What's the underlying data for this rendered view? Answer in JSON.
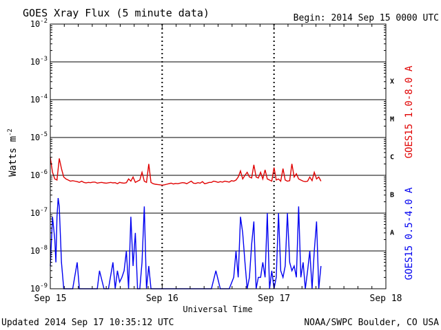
{
  "chart_data": {
    "type": "line",
    "title": "GOES Xray Flux (5 minute data)",
    "begin_label": "Begin:  2014 Sep 15 0000 UTC",
    "xlabel": "Universal Time",
    "ylabel": "Watts m",
    "ylabel_sup": "-2",
    "footer_left": "Updated 2014 Sep 17 10:35:12 UTC",
    "footer_right": "NOAA/SWPC Boulder, CO USA",
    "xlim_days": [
      0,
      3
    ],
    "x_ticks": [
      {
        "day": 0,
        "label": "Sep 15"
      },
      {
        "day": 1,
        "label": "Sep 16"
      },
      {
        "day": 2,
        "label": "Sep 17"
      },
      {
        "day": 3,
        "label": "Sep 18"
      }
    ],
    "y_scale": "log",
    "ylim_exp": [
      -9,
      -2
    ],
    "y_ticks": [
      {
        "exp": -2,
        "base": "10",
        "sup": "-2"
      },
      {
        "exp": -3,
        "base": "10",
        "sup": "-3"
      },
      {
        "exp": -4,
        "base": "10",
        "sup": "-4"
      },
      {
        "exp": -5,
        "base": "10",
        "sup": "-5"
      },
      {
        "exp": -6,
        "base": "10",
        "sup": "-6"
      },
      {
        "exp": -7,
        "base": "10",
        "sup": "-7"
      },
      {
        "exp": -8,
        "base": "10",
        "sup": "-8"
      },
      {
        "exp": -9,
        "base": "10",
        "sup": "-9"
      }
    ],
    "flare_classes": [
      {
        "label": "X",
        "exp": -3.5
      },
      {
        "label": "M",
        "exp": -4.5
      },
      {
        "label": "C",
        "exp": -5.5
      },
      {
        "label": "B",
        "exp": -6.5
      },
      {
        "label": "A",
        "exp": -7.5
      }
    ],
    "grid": true,
    "series": [
      {
        "name": "GOES15 1.0-8.0 A",
        "color": "#e00000",
        "x": [
          0.0,
          0.02,
          0.04,
          0.06,
          0.08,
          0.1,
          0.12,
          0.14,
          0.16,
          0.18,
          0.2,
          0.22,
          0.24,
          0.26,
          0.28,
          0.3,
          0.32,
          0.34,
          0.36,
          0.38,
          0.4,
          0.42,
          0.44,
          0.46,
          0.48,
          0.5,
          0.54,
          0.56,
          0.58,
          0.6,
          0.62,
          0.64,
          0.66,
          0.68,
          0.7,
          0.72,
          0.74,
          0.76,
          0.78,
          0.8,
          0.82,
          0.84,
          0.86,
          0.88,
          0.9,
          0.92,
          0.94,
          0.96,
          0.98,
          1.0,
          1.02,
          1.04,
          1.06,
          1.08,
          1.1,
          1.12,
          1.14,
          1.16,
          1.18,
          1.2,
          1.22,
          1.24,
          1.26,
          1.28,
          1.3,
          1.32,
          1.34,
          1.36,
          1.38,
          1.4,
          1.42,
          1.44,
          1.46,
          1.48,
          1.5,
          1.52,
          1.54,
          1.56,
          1.58,
          1.6,
          1.62,
          1.64,
          1.66,
          1.68,
          1.7,
          1.72,
          1.74,
          1.76,
          1.78,
          1.8,
          1.82,
          1.84,
          1.86,
          1.88,
          1.9,
          1.92,
          1.94,
          1.96,
          1.98,
          2.0,
          2.02,
          2.04,
          2.06,
          2.08,
          2.1,
          2.12,
          2.14,
          2.16,
          2.18,
          2.2,
          2.22,
          2.24,
          2.26,
          2.28,
          2.3,
          2.32,
          2.34,
          2.36,
          2.38,
          2.4,
          2.42
        ],
        "y": [
          3e-06,
          1.2e-06,
          8e-07,
          7.5e-07,
          2.8e-06,
          1.5e-06,
          9e-07,
          8e-07,
          7.5e-07,
          7e-07,
          7.2e-07,
          7e-07,
          6.8e-07,
          6.5e-07,
          7e-07,
          6.5e-07,
          6.3e-07,
          6.5e-07,
          6.4e-07,
          6.6e-07,
          6.6e-07,
          6.2e-07,
          6.4e-07,
          6.5e-07,
          6.3e-07,
          6.2e-07,
          6.5e-07,
          6.3e-07,
          6.4e-07,
          6e-07,
          6.5e-07,
          6.3e-07,
          6.2e-07,
          6.4e-07,
          8e-07,
          7e-07,
          9e-07,
          6.5e-07,
          7e-07,
          7.5e-07,
          1.2e-06,
          7e-07,
          6.5e-07,
          2e-06,
          6.5e-07,
          6e-07,
          5.8e-07,
          5.7e-07,
          5.6e-07,
          5.5e-07,
          5.6e-07,
          5.8e-07,
          6e-07,
          6.2e-07,
          5.9e-07,
          6.1e-07,
          6e-07,
          6.2e-07,
          6.4e-07,
          6.3e-07,
          6e-07,
          6.5e-07,
          7e-07,
          6.2e-07,
          6.1e-07,
          6.4e-07,
          6.2e-07,
          6.8e-07,
          6e-07,
          6.2e-07,
          6.5e-07,
          6.5e-07,
          7e-07,
          6.8e-07,
          6.5e-07,
          6.8e-07,
          6.6e-07,
          7e-07,
          6.8e-07,
          6.6e-07,
          7.2e-07,
          7e-07,
          7.5e-07,
          9e-07,
          1.3e-06,
          8e-07,
          1e-06,
          1.2e-06,
          9e-07,
          8.5e-07,
          1.9e-06,
          9e-07,
          8.5e-07,
          1.2e-06,
          8e-07,
          1.4e-06,
          8e-07,
          7.5e-07,
          7e-07,
          1.6e-06,
          7.5e-07,
          8e-07,
          7e-07,
          1.5e-06,
          7.5e-07,
          7e-07,
          7.2e-07,
          2e-06,
          9e-07,
          1.1e-06,
          8e-07,
          7.5e-07,
          7e-07,
          6.8e-07,
          7e-07,
          9e-07,
          7.2e-07,
          1.2e-06,
          8e-07,
          9e-07,
          7e-07
        ]
      },
      {
        "name": "GOES15 0.5-4.0 A",
        "color": "#0000f0",
        "x": [
          0.0,
          0.02,
          0.04,
          0.05,
          0.06,
          0.07,
          0.08,
          0.1,
          0.12,
          0.14,
          0.16,
          0.18,
          0.2,
          0.24,
          0.26,
          0.28,
          0.3,
          0.34,
          0.36,
          0.4,
          0.42,
          0.44,
          0.48,
          0.52,
          0.56,
          0.58,
          0.6,
          0.62,
          0.64,
          0.66,
          0.68,
          0.7,
          0.72,
          0.74,
          0.76,
          0.78,
          0.8,
          0.82,
          0.84,
          0.86,
          0.88,
          0.9,
          0.92,
          0.94,
          0.96,
          1.0,
          1.04,
          1.08,
          1.12,
          1.16,
          1.2,
          1.24,
          1.28,
          1.32,
          1.36,
          1.4,
          1.44,
          1.48,
          1.52,
          1.56,
          1.6,
          1.64,
          1.66,
          1.68,
          1.7,
          1.72,
          1.74,
          1.76,
          1.78,
          1.8,
          1.82,
          1.84,
          1.86,
          1.88,
          1.9,
          1.92,
          1.94,
          1.96,
          1.98,
          2.0,
          2.02,
          2.04,
          2.06,
          2.08,
          2.1,
          2.12,
          2.14,
          2.16,
          2.18,
          2.2,
          2.22,
          2.24,
          2.26,
          2.28,
          2.3,
          2.32,
          2.34,
          2.36,
          2.38,
          2.4,
          2.42
        ],
        "y": [
          4e-09,
          8e-08,
          2e-08,
          5e-09,
          8e-08,
          2.5e-07,
          1.5e-07,
          5e-09,
          1e-09,
          1e-09,
          1e-09,
          1e-09,
          1e-09,
          5e-09,
          1e-09,
          1e-09,
          1e-09,
          1e-09,
          1e-09,
          1e-09,
          1e-09,
          3e-09,
          1e-09,
          1e-09,
          5e-09,
          1e-09,
          3e-09,
          1.5e-09,
          2e-09,
          3e-09,
          1e-08,
          1e-09,
          8e-08,
          4e-09,
          3e-08,
          1e-09,
          1e-09,
          5e-09,
          1.5e-07,
          1e-09,
          4e-09,
          1e-09,
          1e-09,
          1e-09,
          1e-09,
          1e-09,
          1e-09,
          1e-09,
          1e-09,
          1e-09,
          1e-09,
          1e-09,
          1e-09,
          1e-09,
          1e-09,
          1e-09,
          1e-09,
          3e-09,
          1e-09,
          1e-09,
          1e-09,
          2e-09,
          1e-08,
          2e-09,
          8e-08,
          3e-08,
          5e-09,
          1e-09,
          2e-09,
          1.5e-08,
          6e-08,
          1e-09,
          2e-09,
          2e-09,
          5e-09,
          2e-09,
          1e-07,
          1e-09,
          3e-09,
          1e-09,
          2e-09,
          1e-07,
          3e-09,
          2e-09,
          4e-09,
          1e-07,
          5e-09,
          3e-09,
          4e-09,
          2e-09,
          1.5e-07,
          2e-09,
          5e-09,
          1e-09,
          3e-09,
          1e-08,
          1e-09,
          1e-08,
          6e-08,
          1e-09,
          4e-09
        ]
      }
    ]
  }
}
